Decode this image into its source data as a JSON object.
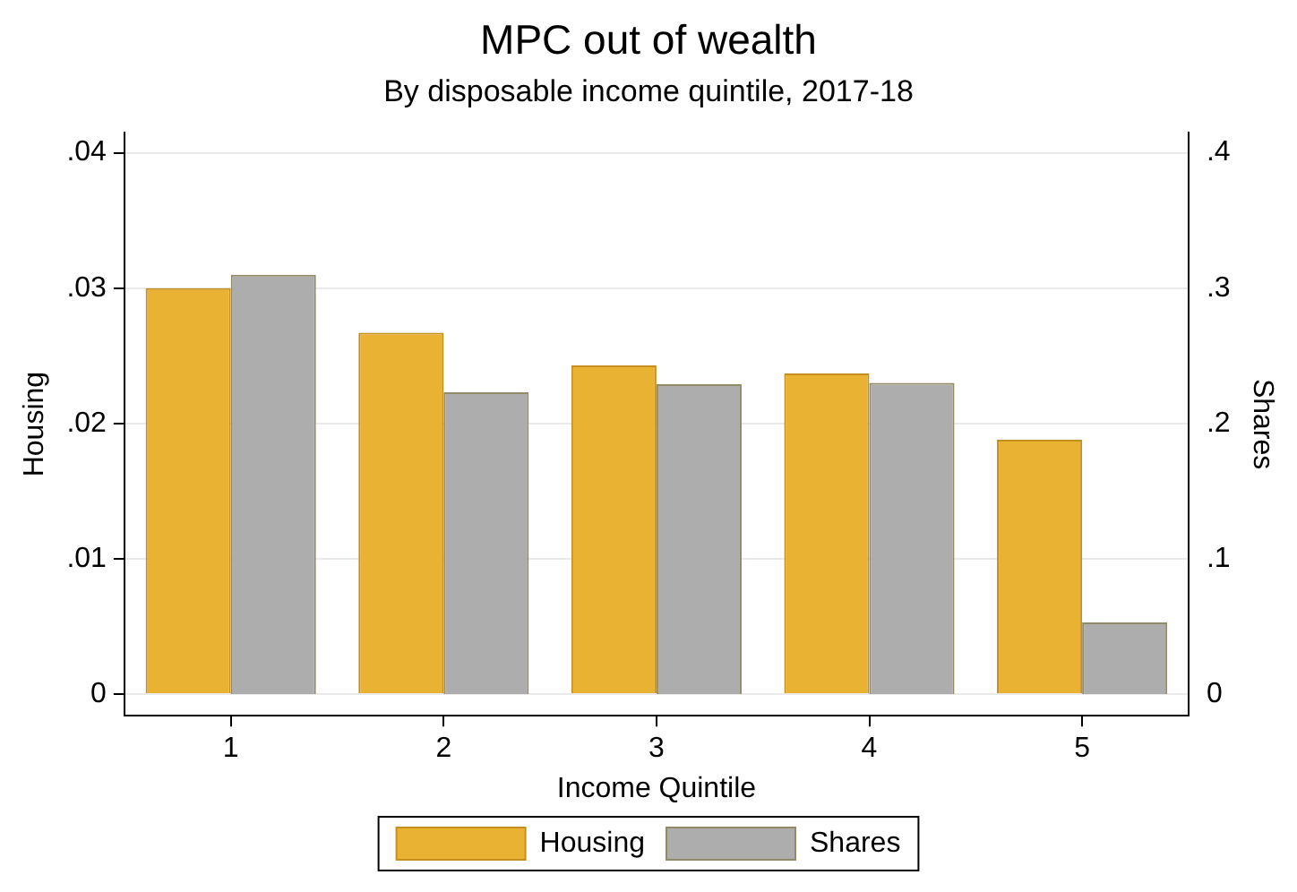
{
  "chart_data": {
    "type": "bar",
    "title": "MPC out of wealth",
    "subtitle": "By disposable income quintile, 2017-18",
    "xlabel": "Income Quintile",
    "ylabel": "Housing",
    "y2label": "Shares",
    "categories": [
      "1",
      "2",
      "3",
      "4",
      "5"
    ],
    "series": [
      {
        "name": "Housing",
        "color": "#e9b233",
        "values": [
          0.03,
          0.0267,
          0.0243,
          0.0237,
          0.0188
        ]
      },
      {
        "name": "Shares",
        "color": "#adadad",
        "axis": "y2",
        "values": [
          0.31,
          0.223,
          0.229,
          0.23,
          0.053
        ]
      }
    ],
    "ylim": [
      -0.0016,
      0.0415
    ],
    "yticks": [
      0,
      {
        "value": 0.01,
        "label": ".01"
      },
      {
        "value": 0.02,
        "label": ".02"
      },
      {
        "value": 0.03,
        "label": ".03"
      },
      {
        "value": 0.04,
        "label": ".04"
      }
    ],
    "y2lim": [
      -0.016,
      0.415
    ],
    "y2ticks": [
      0,
      {
        "value": 0.1,
        "label": ".1"
      },
      {
        "value": 0.2,
        "label": ".2"
      },
      {
        "value": 0.3,
        "label": ".3"
      },
      {
        "value": 0.4,
        "label": ".4"
      }
    ],
    "grid": "y",
    "legend": "bottom"
  }
}
